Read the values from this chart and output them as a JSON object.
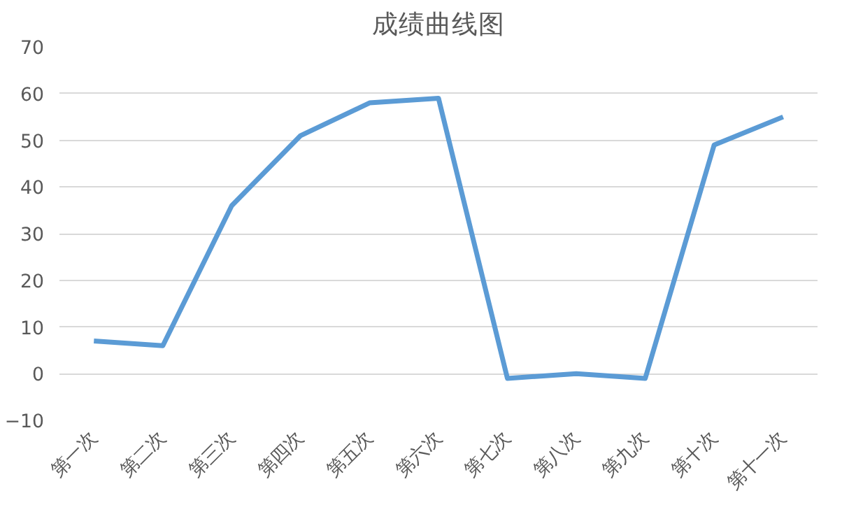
{
  "chart_data": {
    "type": "line",
    "title": "成绩曲线图",
    "categories": [
      "第一次",
      "第二次",
      "第三次",
      "第四次",
      "第五次",
      "第六次",
      "第七次",
      "第八次",
      "第九次",
      "第十次",
      "第十一次"
    ],
    "series": [
      {
        "color": "#5b9bd5",
        "values": [
          7,
          6,
          36,
          51,
          58,
          59,
          -1,
          0,
          -1,
          49,
          55
        ]
      }
    ],
    "ylim": [
      -10,
      70
    ],
    "yticks": [
      -10,
      0,
      10,
      20,
      30,
      40,
      50,
      60,
      70
    ],
    "grid": "y",
    "marker": "none",
    "line_style": "solid"
  }
}
